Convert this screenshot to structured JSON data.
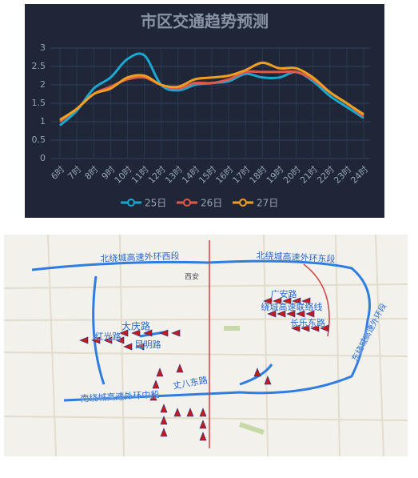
{
  "chart_data": {
    "type": "line",
    "title": "市区交通趋势预测",
    "categories": [
      "6时",
      "7时",
      "8时",
      "9时",
      "10时",
      "11时",
      "12时",
      "13时",
      "14时",
      "15时",
      "16时",
      "17时",
      "18时",
      "19时",
      "20时",
      "21时",
      "22时",
      "23时",
      "24时"
    ],
    "series": [
      {
        "name": "25日",
        "color": "#1aa8d0",
        "values": [
          0.9,
          1.3,
          1.9,
          2.2,
          2.7,
          2.8,
          2.0,
          1.85,
          2.0,
          2.05,
          2.1,
          2.3,
          2.2,
          2.2,
          2.35,
          2.1,
          1.7,
          1.4,
          1.1
        ]
      },
      {
        "name": "26日",
        "color": "#e05a48",
        "values": [
          1.0,
          1.35,
          1.75,
          1.95,
          2.15,
          2.2,
          2.0,
          1.9,
          2.05,
          2.05,
          2.15,
          2.35,
          2.35,
          2.35,
          2.35,
          2.15,
          1.8,
          1.5,
          1.15
        ]
      },
      {
        "name": "27日",
        "color": "#f0a020",
        "values": [
          1.05,
          1.35,
          1.75,
          1.9,
          2.2,
          2.25,
          2.0,
          1.95,
          2.15,
          2.2,
          2.25,
          2.4,
          2.6,
          2.45,
          2.45,
          2.2,
          1.8,
          1.5,
          1.2
        ]
      }
    ],
    "ylim": [
      0,
      3
    ],
    "yticks": [
      0,
      0.5,
      1,
      1.5,
      2,
      2.5,
      3
    ],
    "grid": true
  },
  "map": {
    "labels": [
      "北绕城高速外环西段",
      "北绕城高速外环东段",
      "广安路",
      "绕城高速联络线",
      "长乐东路",
      "大庆路",
      "红光路",
      "昆明路",
      "丈八东路",
      "南绕城高速外环中段",
      "东绕城高速外环段",
      "西安"
    ]
  }
}
